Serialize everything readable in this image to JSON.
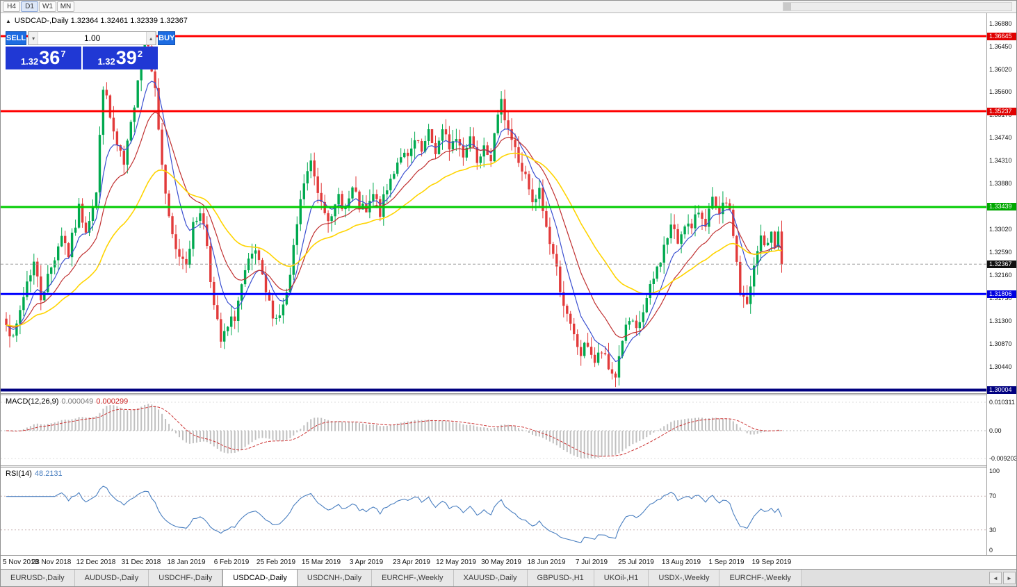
{
  "toolbar": {
    "timeframes": [
      {
        "label": "H4",
        "active": false
      },
      {
        "label": "D1",
        "active": true
      },
      {
        "label": "W1",
        "active": false
      },
      {
        "label": "MN",
        "active": false
      }
    ]
  },
  "chart": {
    "title": "USDCAD-,Daily",
    "open": "1.32364",
    "high": "1.32461",
    "low": "1.32339",
    "close": "1.32367"
  },
  "trade_panel": {
    "sell_label": "SELL",
    "buy_label": "BUY",
    "volume": "1.00",
    "sell_price": {
      "prefix": "1.32",
      "pips": "36",
      "point": "7"
    },
    "buy_price": {
      "prefix": "1.32",
      "pips": "39",
      "point": "2"
    }
  },
  "icons": {
    "collapse": "▲",
    "spin_up": "▴",
    "spin_down": "▾",
    "tab_prev": "◄",
    "tab_next": "►"
  },
  "price_axis": {
    "ticks": [
      "1.36880",
      "1.36450",
      "1.36020",
      "1.35600",
      "1.35170",
      "1.34740",
      "1.34310",
      "1.33880",
      "1.33450",
      "1.33020",
      "1.32590",
      "1.32160",
      "1.31730",
      "1.31300",
      "1.30870",
      "1.30440",
      "1.30010"
    ]
  },
  "levels": [
    {
      "price": 1.36645,
      "label": "1.36645",
      "color": "#ff0000",
      "badge_color": "#e00000",
      "width": 3
    },
    {
      "price": 1.35237,
      "label": "1.35237",
      "color": "#ff0000",
      "badge_color": "#e00000",
      "width": 3
    },
    {
      "price": 1.33439,
      "label": "1.33439",
      "color": "#00cc00",
      "badge_color": "#00a800",
      "width": 3
    },
    {
      "price": 1.31806,
      "label": "1.31806",
      "color": "#0000ff",
      "badge_color": "#0000e0",
      "width": 3
    },
    {
      "price": 1.30004,
      "label": "1.30004",
      "color": "#000080",
      "badge_color": "#000080",
      "width": 4
    }
  ],
  "current_price": {
    "value": 1.32367,
    "label": "1.32367"
  },
  "macd": {
    "label": "MACD(12,26,9)",
    "value_main": "0.000049",
    "value_signal": "0.000299",
    "fast": 12,
    "slow": 26,
    "signal_period": 9,
    "axis": [
      "0.010311",
      "0.00",
      "-0.009203"
    ]
  },
  "rsi": {
    "label": "RSI(14)",
    "value": "48.2131",
    "period": 14,
    "levels": [
      70,
      30
    ],
    "axis": [
      "100",
      "70",
      "30",
      "0"
    ]
  },
  "time_axis": {
    "labels": [
      "5 Nov 2018",
      "23 Nov 2018",
      "12 Dec 2018",
      "31 Dec 2018",
      "18 Jan 2019",
      "6 Feb 2019",
      "25 Feb 2019",
      "15 Mar 2019",
      "3 Apr 2019",
      "23 Apr 2019",
      "12 May 2019",
      "30 May 2019",
      "18 Jun 2019",
      "7 Jul 2019",
      "25 Jul 2019",
      "13 Aug 2019",
      "1 Sep 2019",
      "19 Sep 2019"
    ]
  },
  "tabs": {
    "items": [
      {
        "label": "EURUSD-,Daily",
        "active": false
      },
      {
        "label": "AUDUSD-,Daily",
        "active": false
      },
      {
        "label": "USDCHF-,Daily",
        "active": false
      },
      {
        "label": "USDCAD-,Daily",
        "active": true
      },
      {
        "label": "USDCNH-,Daily",
        "active": false
      },
      {
        "label": "EURCHF-,Weekly",
        "active": false
      },
      {
        "label": "XAUUSD-,Daily",
        "active": false
      },
      {
        "label": "GBPUSD-,H1",
        "active": false
      },
      {
        "label": "UKOil-,H1",
        "active": false
      },
      {
        "label": "USDX-,Weekly",
        "active": false
      },
      {
        "label": "EURCHF-,Weekly",
        "active": false
      }
    ]
  },
  "chart_data": {
    "type": "candlestick",
    "symbol": "USDCAD-",
    "timeframe": "Daily",
    "candle_count": 225,
    "seed": 7,
    "ylim": [
      1.3001,
      1.3688
    ],
    "colors": {
      "up": "#00a94f",
      "down": "#e23a3a"
    },
    "moving_averages": [
      {
        "period": 8,
        "color": "#3a4fd0",
        "width": 1.2
      },
      {
        "period": 17,
        "color": "#c03030",
        "width": 1.2
      },
      {
        "period": 40,
        "color": "#ffd400",
        "width": 1.6
      }
    ],
    "price_anchors": [
      [
        0,
        1.3135
      ],
      [
        2,
        1.309
      ],
      [
        4,
        1.315
      ],
      [
        6,
        1.3205
      ],
      [
        8,
        1.324
      ],
      [
        10,
        1.3175
      ],
      [
        13,
        1.323
      ],
      [
        16,
        1.3295
      ],
      [
        18,
        1.3255
      ],
      [
        21,
        1.334
      ],
      [
        23,
        1.3305
      ],
      [
        26,
        1.337
      ],
      [
        28,
        1.3575
      ],
      [
        30,
        1.351
      ],
      [
        32,
        1.3455
      ],
      [
        34,
        1.342
      ],
      [
        36,
        1.3495
      ],
      [
        38,
        1.359
      ],
      [
        40,
        1.365
      ],
      [
        41,
        1.3658
      ],
      [
        43,
        1.356
      ],
      [
        45,
        1.3425
      ],
      [
        47,
        1.3315
      ],
      [
        49,
        1.326
      ],
      [
        52,
        1.3245
      ],
      [
        54,
        1.3305
      ],
      [
        56,
        1.334
      ],
      [
        58,
        1.3275
      ],
      [
        60,
        1.3155
      ],
      [
        62,
        1.309
      ],
      [
        64,
        1.3115
      ],
      [
        66,
        1.314
      ],
      [
        68,
        1.3195
      ],
      [
        70,
        1.3235
      ],
      [
        72,
        1.326
      ],
      [
        74,
        1.3205
      ],
      [
        76,
        1.316
      ],
      [
        78,
        1.3135
      ],
      [
        80,
        1.3155
      ],
      [
        82,
        1.321
      ],
      [
        84,
        1.331
      ],
      [
        86,
        1.339
      ],
      [
        88,
        1.3425
      ],
      [
        90,
        1.3375
      ],
      [
        92,
        1.3345
      ],
      [
        94,
        1.3315
      ],
      [
        96,
        1.3365
      ],
      [
        98,
        1.334
      ],
      [
        100,
        1.3375
      ],
      [
        102,
        1.3345
      ],
      [
        104,
        1.333
      ],
      [
        106,
        1.3365
      ],
      [
        108,
        1.3335
      ],
      [
        110,
        1.3375
      ],
      [
        112,
        1.3415
      ],
      [
        114,
        1.3445
      ],
      [
        116,
        1.343
      ],
      [
        118,
        1.3465
      ],
      [
        120,
        1.3445
      ],
      [
        122,
        1.3478
      ],
      [
        124,
        1.345
      ],
      [
        126,
        1.3482
      ],
      [
        128,
        1.346
      ],
      [
        130,
        1.3472
      ],
      [
        132,
        1.3445
      ],
      [
        134,
        1.3478
      ],
      [
        136,
        1.3435
      ],
      [
        138,
        1.3468
      ],
      [
        140,
        1.344
      ],
      [
        142,
        1.3505
      ],
      [
        143,
        1.3558
      ],
      [
        144,
        1.3515
      ],
      [
        146,
        1.347
      ],
      [
        148,
        1.343
      ],
      [
        150,
        1.3398
      ],
      [
        152,
        1.3345
      ],
      [
        154,
        1.3372
      ],
      [
        156,
        1.3305
      ],
      [
        158,
        1.3255
      ],
      [
        160,
        1.3195
      ],
      [
        162,
        1.3135
      ],
      [
        164,
        1.3098
      ],
      [
        166,
        1.3068
      ],
      [
        168,
        1.3088
      ],
      [
        170,
        1.3052
      ],
      [
        172,
        1.3072
      ],
      [
        174,
        1.3038
      ],
      [
        176,
        1.3028
      ],
      [
        178,
        1.3098
      ],
      [
        180,
        1.3128
      ],
      [
        182,
        1.3108
      ],
      [
        184,
        1.3148
      ],
      [
        186,
        1.3188
      ],
      [
        188,
        1.3228
      ],
      [
        190,
        1.3268
      ],
      [
        192,
        1.3308
      ],
      [
        194,
        1.3278
      ],
      [
        196,
        1.3318
      ],
      [
        198,
        1.3298
      ],
      [
        200,
        1.3338
      ],
      [
        202,
        1.3318
      ],
      [
        204,
        1.3352
      ],
      [
        206,
        1.3322
      ],
      [
        208,
        1.3358
      ],
      [
        210,
        1.3295
      ],
      [
        212,
        1.3185
      ],
      [
        214,
        1.3155
      ],
      [
        216,
        1.3228
      ],
      [
        218,
        1.3288
      ],
      [
        220,
        1.3268
      ],
      [
        221,
        1.3298
      ],
      [
        222,
        1.3278
      ],
      [
        223,
        1.3292
      ],
      [
        224,
        1.3237
      ]
    ]
  }
}
